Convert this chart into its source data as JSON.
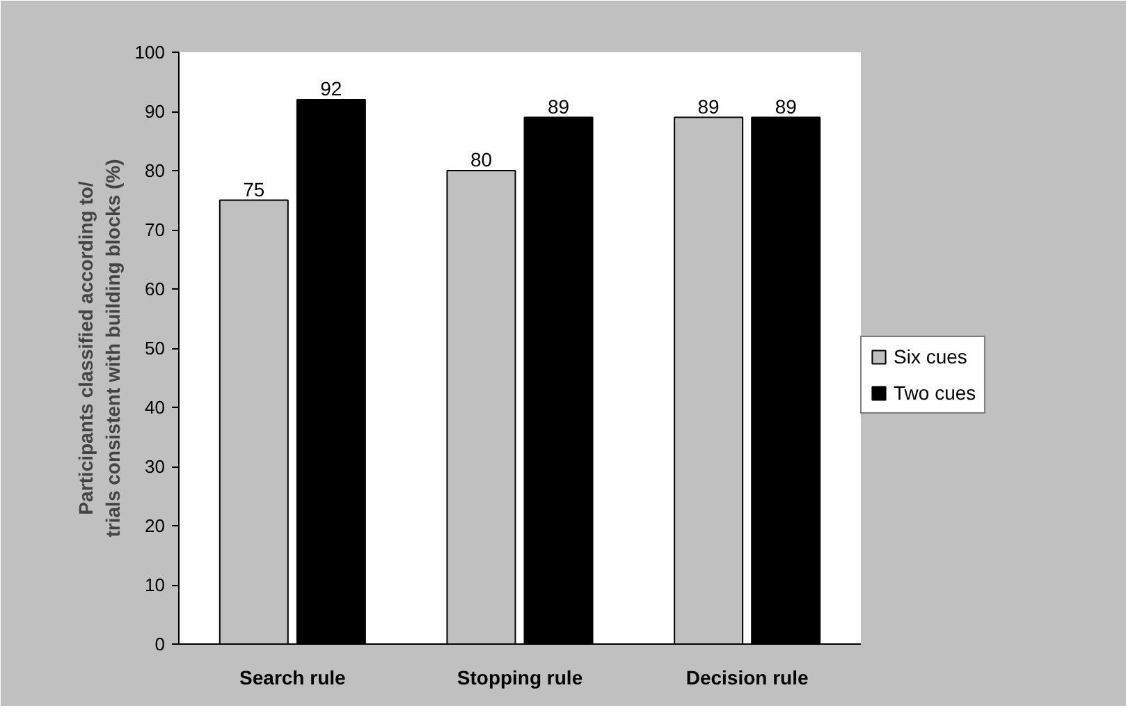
{
  "chart_data": {
    "type": "bar",
    "ylabel": "Participants classified according to/\ntrials consistent with building blocks (%)",
    "categories": [
      "Search rule",
      "Stopping rule",
      "Decision rule"
    ],
    "series": [
      {
        "name": "Six cues",
        "color": "#c0c0c0",
        "values": [
          75,
          80,
          89
        ]
      },
      {
        "name": "Two cues",
        "color": "#000000",
        "values": [
          92,
          89,
          89
        ]
      }
    ],
    "ylim": [
      0,
      100
    ],
    "yticks": [
      0,
      10,
      20,
      30,
      40,
      50,
      60,
      70,
      80,
      90,
      100
    ],
    "grid": false,
    "legend": "right",
    "data_labels": true
  }
}
